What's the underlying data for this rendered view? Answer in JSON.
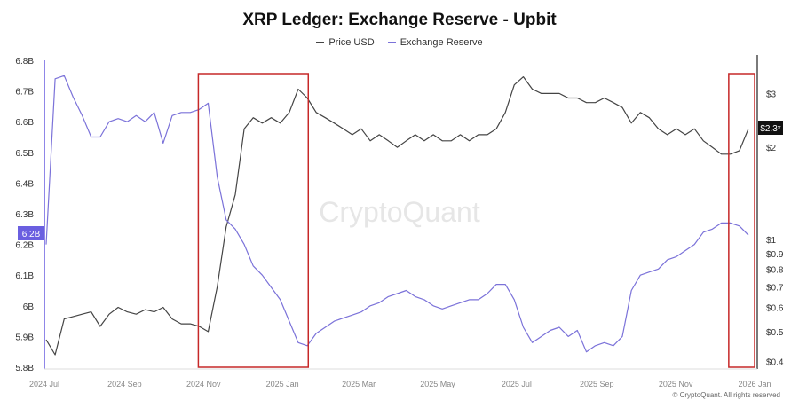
{
  "chart_data": {
    "type": "line",
    "title": "XRP Ledger: Exchange Reserve - Upbit",
    "legend": {
      "placement": "top-center",
      "entries": [
        "Price USD",
        "Exchange Reserve"
      ]
    },
    "x_start": "2024-07-01",
    "interval_days": 7,
    "x_ticks": [
      "2024 Jul",
      "2024 Sep",
      "2024 Nov",
      "2025 Jan",
      "2025 Mar",
      "2025 May",
      "2025 Jul",
      "2025 Sep",
      "2025 Nov",
      "2026 Jan"
    ],
    "y_left": {
      "label": "Exchange Reserve",
      "ticks": [
        "6.8B",
        "6.7B",
        "6.6B",
        "6.5B",
        "6.4B",
        "6.3B",
        "6.2B",
        "6.1B",
        "6B",
        "5.9B",
        "5.8B"
      ],
      "range": [
        5.8,
        6.8
      ],
      "unit": "B"
    },
    "y_right": {
      "label": "Price USD",
      "scale": "log",
      "ticks": [
        "$3",
        "$2",
        "$1",
        "$0.9",
        "$0.8",
        "$0.7",
        "$0.6",
        "$0.5",
        "$0.4"
      ],
      "tick_values": [
        3,
        2,
        1,
        0.9,
        0.8,
        0.7,
        0.6,
        0.5,
        0.4
      ],
      "range": [
        0.4,
        3.5
      ]
    },
    "series": [
      {
        "name": "Price USD",
        "axis": "right",
        "color": "#444444",
        "values": [
          0.47,
          0.42,
          0.55,
          0.56,
          0.57,
          0.58,
          0.52,
          0.57,
          0.6,
          0.58,
          0.57,
          0.59,
          0.58,
          0.6,
          0.55,
          0.53,
          0.53,
          0.52,
          0.5,
          0.7,
          1.1,
          1.4,
          2.3,
          2.5,
          2.4,
          2.5,
          2.4,
          2.6,
          3.1,
          2.9,
          2.6,
          2.5,
          2.4,
          2.3,
          2.2,
          2.3,
          2.1,
          2.2,
          2.1,
          2.0,
          2.1,
          2.2,
          2.1,
          2.2,
          2.1,
          2.1,
          2.2,
          2.1,
          2.2,
          2.2,
          2.3,
          2.6,
          3.2,
          3.4,
          3.1,
          3.0,
          3.0,
          3.0,
          2.9,
          2.9,
          2.8,
          2.8,
          2.9,
          2.8,
          2.7,
          2.4,
          2.6,
          2.5,
          2.3,
          2.2,
          2.3,
          2.2,
          2.3,
          2.1,
          2.0,
          1.9,
          1.9,
          1.95,
          2.3
        ]
      },
      {
        "name": "Exchange Reserve",
        "axis": "left",
        "color": "#7b72d9",
        "values": [
          6.2,
          6.74,
          6.75,
          6.68,
          6.62,
          6.55,
          6.55,
          6.6,
          6.61,
          6.6,
          6.62,
          6.6,
          6.63,
          6.53,
          6.62,
          6.63,
          6.63,
          6.64,
          6.66,
          6.42,
          6.28,
          6.25,
          6.2,
          6.13,
          6.1,
          6.06,
          6.02,
          5.95,
          5.88,
          5.87,
          5.91,
          5.93,
          5.95,
          5.96,
          5.97,
          5.98,
          6.0,
          6.01,
          6.03,
          6.04,
          6.05,
          6.03,
          6.02,
          6.0,
          5.99,
          6.0,
          6.01,
          6.02,
          6.02,
          6.04,
          6.07,
          6.07,
          6.02,
          5.93,
          5.88,
          5.9,
          5.92,
          5.93,
          5.9,
          5.92,
          5.85,
          5.87,
          5.88,
          5.87,
          5.9,
          6.05,
          6.1,
          6.11,
          6.12,
          6.15,
          6.16,
          6.18,
          6.2,
          6.24,
          6.25,
          6.27,
          6.27,
          6.26,
          6.23
        ]
      }
    ],
    "current_labels": {
      "reserve": "6.2B",
      "price": "$2.3*"
    },
    "highlights": [
      {
        "from": "2024-10-28",
        "to": "2025-01-21",
        "color": "#c62828"
      },
      {
        "from": "2025-12-12",
        "to": "2026-01-01",
        "color": "#c62828"
      }
    ],
    "watermark": "CryptoQuant",
    "grid": false
  },
  "footer": {
    "copyright": "© CryptoQuant. All rights reserved"
  }
}
